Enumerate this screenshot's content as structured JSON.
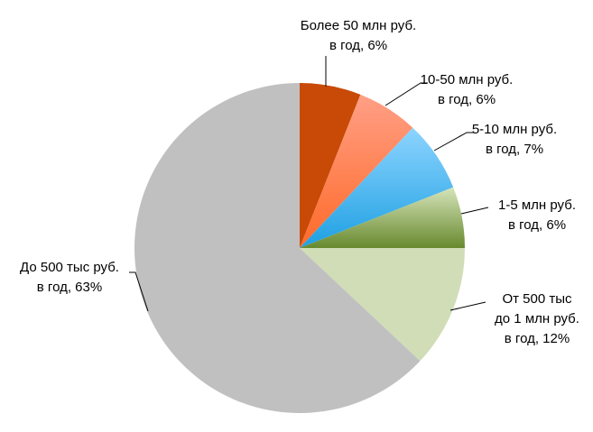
{
  "chart_data": {
    "type": "pie",
    "start": "top",
    "direction": "clockwise",
    "slices": [
      {
        "label_lines": [
          "Более 50 млн руб.",
          "в год, 6%"
        ],
        "value": 6,
        "colors": [
          "#C84A06",
          "#C84A06"
        ]
      },
      {
        "label_lines": [
          "10-50 млн руб.",
          "в год, 6%"
        ],
        "value": 6,
        "colors": [
          "#FF9F86",
          "#FF6A28"
        ]
      },
      {
        "label_lines": [
          "5-10 млн руб.",
          "в год, 7%"
        ],
        "value": 7,
        "colors": [
          "#8DD4FF",
          "#1EA0E2"
        ]
      },
      {
        "label_lines": [
          "1-5 млн руб.",
          "в год, 6%"
        ],
        "value": 6,
        "colors": [
          "#D6E4BA",
          "#688A2E"
        ]
      },
      {
        "label_lines": [
          "От 500 тыс",
          "до 1 млн руб.",
          "в год, 12%"
        ],
        "value": 12,
        "colors": [
          "#D0DDB7",
          "#D0DDB7"
        ]
      },
      {
        "label_lines": [
          "До 500 тыс руб.",
          "в год, 63%"
        ],
        "value": 63,
        "colors": [
          "#C0C0C0",
          "#C0C0C0"
        ]
      }
    ]
  }
}
